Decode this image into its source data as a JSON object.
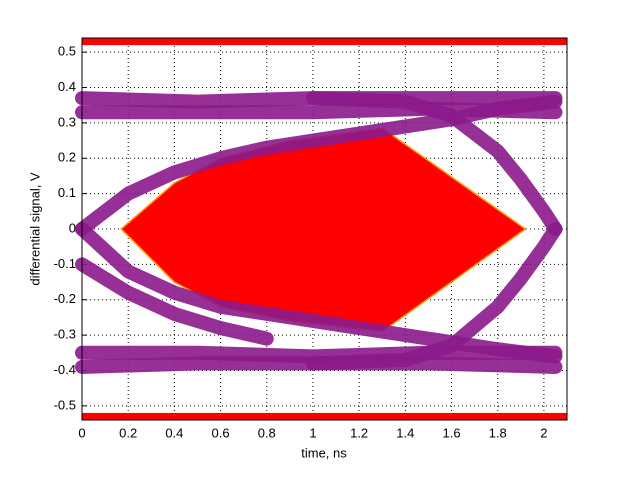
{
  "chart_data": {
    "type": "eye",
    "xlabel": "time, ns",
    "ylabel": "differential signal, V",
    "xlim": [
      0,
      2.1
    ],
    "ylim": [
      -0.54,
      0.54
    ],
    "xticks": [
      0,
      0.2,
      0.4,
      0.6,
      0.8,
      1,
      1.2,
      1.4,
      1.6,
      1.8,
      2
    ],
    "yticks": [
      -0.5,
      -0.4,
      -0.3,
      -0.2,
      -0.1,
      0,
      0.1,
      0.2,
      0.3,
      0.4,
      0.5
    ],
    "grid": true,
    "mask": {
      "color": "#ff0000",
      "edge": "#ff9900",
      "x": [
        0.17,
        0.4,
        0.6,
        0.9,
        1.3,
        1.92,
        1.3,
        0.9,
        0.6,
        0.4
      ],
      "y": [
        0,
        0.13,
        0.2,
        0.25,
        0.285,
        0,
        -0.29,
        -0.26,
        -0.22,
        -0.15
      ]
    },
    "limit_bands": [
      {
        "color": "#ff0000",
        "y": [
          0.52,
          0.54
        ]
      },
      {
        "color": "#ff0000",
        "y": [
          -0.54,
          -0.52
        ]
      }
    ],
    "series": [
      {
        "color": "#8b1a8b",
        "x": [
          0,
          0.5,
          1,
          1.5,
          2.05
        ],
        "values": [
          0.33,
          0.33,
          0.33,
          0.34,
          0.33
        ]
      },
      {
        "color": "#8b1a8b",
        "x": [
          0,
          0.5,
          1,
          1.5,
          2.05
        ],
        "values": [
          0.37,
          0.36,
          0.37,
          0.37,
          0.37
        ]
      },
      {
        "color": "#8b1a8b",
        "x": [
          0,
          0.5,
          1,
          1.5,
          2.05
        ],
        "values": [
          -0.35,
          -0.35,
          -0.36,
          -0.35,
          -0.35
        ]
      },
      {
        "color": "#8b1a8b",
        "x": [
          0,
          0.5,
          1,
          1.5,
          2.05
        ],
        "values": [
          -0.39,
          -0.38,
          -0.38,
          -0.38,
          -0.39
        ]
      },
      {
        "color": "#8b1a8b",
        "x": [
          0,
          0.2,
          0.4,
          0.6,
          0.8,
          1,
          1.2,
          1.4,
          1.6,
          1.8,
          2.05
        ],
        "values": [
          0,
          0.1,
          0.16,
          0.2,
          0.23,
          0.25,
          0.27,
          0.29,
          0.31,
          0.34,
          0.36
        ]
      },
      {
        "color": "#8b1a8b",
        "x": [
          1,
          1.4,
          1.6,
          1.8,
          1.9,
          2,
          2.05
        ],
        "values": [
          0.37,
          0.36,
          0.32,
          0.22,
          0.14,
          0.05,
          0
        ]
      },
      {
        "color": "#8b1a8b",
        "x": [
          0,
          0.2,
          0.4,
          0.6,
          0.8,
          1,
          1.2,
          1.4,
          1.6,
          1.8,
          2.05
        ],
        "values": [
          0,
          -0.12,
          -0.18,
          -0.22,
          -0.24,
          -0.26,
          -0.28,
          -0.3,
          -0.32,
          -0.34,
          -0.36
        ]
      },
      {
        "color": "#8b1a8b",
        "x": [
          1,
          1.4,
          1.6,
          1.8,
          1.9,
          2,
          2.05
        ],
        "values": [
          -0.38,
          -0.37,
          -0.33,
          -0.22,
          -0.14,
          -0.05,
          0
        ]
      },
      {
        "color": "#8b1a8b",
        "x": [
          0,
          0.2,
          0.4,
          0.6,
          0.8
        ],
        "values": [
          -0.1,
          -0.18,
          -0.24,
          -0.28,
          -0.31
        ]
      }
    ]
  }
}
